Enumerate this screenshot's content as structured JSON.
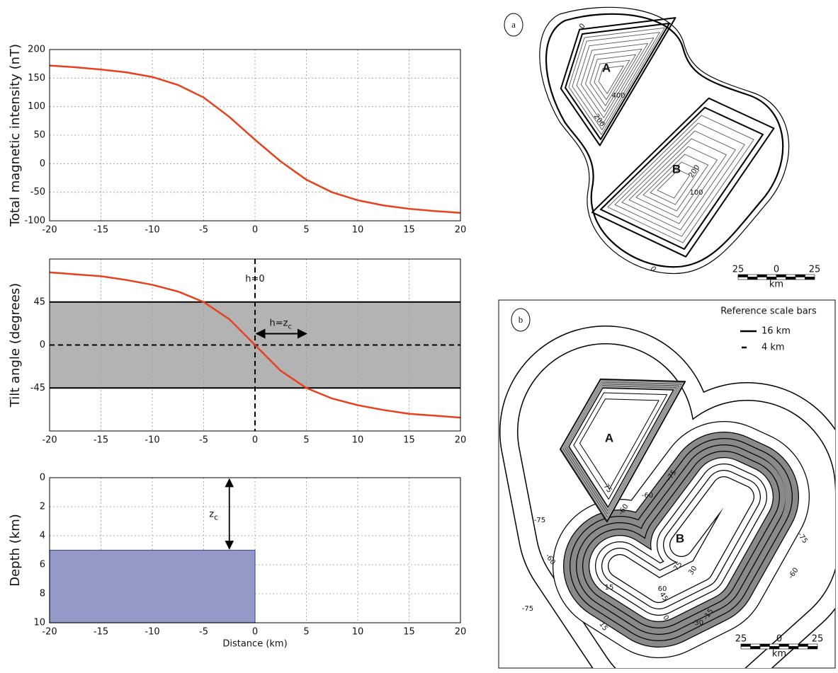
{
  "chart_data": [
    {
      "type": "line",
      "ylabel": "Total magnetic intensity (nT)",
      "xlim": [
        -20,
        20
      ],
      "xticks": [
        -20,
        -15,
        -10,
        -5,
        0,
        5,
        10,
        15,
        20
      ],
      "ylim": [
        -100,
        200
      ],
      "yticks": [
        -100,
        -50,
        0,
        50,
        100,
        150,
        200
      ],
      "grid": "both",
      "series": [
        {
          "color": "#e8401c",
          "x": [
            -20,
            -17.5,
            -15,
            -12.5,
            -10,
            -7.5,
            -5,
            -2.5,
            0,
            2.5,
            5,
            7.5,
            10,
            12.5,
            15,
            17.5,
            20
          ],
          "values": [
            172,
            169,
            165,
            160,
            152,
            138,
            116,
            82,
            42,
            4,
            -28,
            -50,
            -64,
            -73,
            -79,
            -83,
            -86
          ]
        }
      ]
    },
    {
      "type": "line",
      "ylabel": "Tilt angle (degrees)",
      "xlim": [
        -20,
        20
      ],
      "xticks": [
        -20,
        -15,
        -10,
        -5,
        0,
        5,
        10,
        15,
        20
      ],
      "ylim": [
        -90,
        90
      ],
      "yticks": [
        -45,
        0,
        45
      ],
      "grid": "x",
      "band": [
        -45,
        45
      ],
      "band_color": "#b3b3b3",
      "hline": 0,
      "vline": 0,
      "arrow": {
        "from": 0,
        "to": 5
      },
      "annotations": [
        {
          "text": "h=0"
        },
        {
          "text": "h=z",
          "sub": "c"
        }
      ],
      "series": [
        {
          "color": "#e8401c",
          "x": [
            -20,
            -17.5,
            -15,
            -12.5,
            -10,
            -7.5,
            -5,
            -2.5,
            0,
            2.5,
            5,
            7.5,
            10,
            12.5,
            15,
            17.5,
            20
          ],
          "values": [
            76,
            74,
            72,
            68,
            63,
            56,
            45,
            27,
            0,
            -27,
            -45,
            -56,
            -63,
            -68,
            -72,
            -74,
            -76
          ]
        }
      ]
    },
    {
      "type": "section",
      "ylabel": "Depth (km)",
      "xlabel": "Distance (km)",
      "xlim": [
        -20,
        20
      ],
      "xticks": [
        -20,
        -15,
        -10,
        -5,
        0,
        5,
        10,
        15,
        20
      ],
      "ylim": [
        10,
        0
      ],
      "yticks": [
        0,
        2,
        4,
        6,
        8,
        10
      ],
      "grid": "both",
      "blocks": [
        {
          "x": [
            -20,
            0
          ],
          "y": [
            5,
            10
          ],
          "color": "#9499c8"
        }
      ],
      "arrow": {
        "x": -2.5,
        "from": 0,
        "to": 5
      },
      "annotations": [
        {
          "text": "z",
          "sub": "c"
        }
      ]
    }
  ],
  "panels": [
    {
      "label": "a",
      "regions": [
        "A",
        "B"
      ],
      "contour_labels": [
        "0",
        "400",
        "200",
        "200",
        "100",
        "0"
      ],
      "scale_bar": {
        "ticks": [
          "25",
          "0",
          "25"
        ],
        "unit": "km"
      }
    },
    {
      "label": "b",
      "legend": {
        "title": "Reference scale bars",
        "items": [
          "16 km",
          "4 km"
        ]
      },
      "regions": [
        "A",
        "B"
      ],
      "contour_labels": [
        "-75",
        "-60",
        "75",
        "-60",
        "-75",
        "-60",
        "75",
        "60",
        "45",
        "30",
        "15",
        "0",
        "-15",
        "-30",
        "-75",
        "-60",
        "-75",
        "15"
      ],
      "scale_bar": {
        "ticks": [
          "25",
          "0",
          "25"
        ],
        "unit": "km"
      }
    }
  ]
}
